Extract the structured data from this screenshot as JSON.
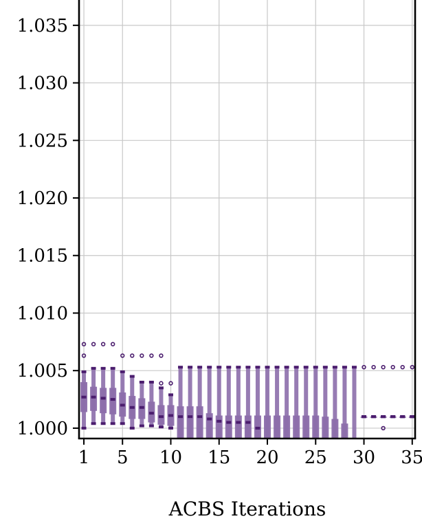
{
  "chart_data": {
    "type": "box",
    "title": "",
    "xlabel": "ACBS Iterations",
    "ylabel": "",
    "xlim": [
      0.5,
      35.3
    ],
    "ylim": [
      0.9991,
      1.0372
    ],
    "xticks": [
      1,
      5,
      10,
      15,
      20,
      25,
      30,
      35
    ],
    "xtick_labels": [
      "1",
      "5",
      "10",
      "15",
      "20",
      "25",
      "30",
      "35"
    ],
    "yticks": [
      1.0,
      1.005,
      1.01,
      1.015,
      1.02,
      1.025,
      1.03,
      1.035
    ],
    "ytick_labels": [
      "1.000",
      "1.005",
      "1.010",
      "1.015",
      "1.020",
      "1.025",
      "1.030",
      "1.035"
    ],
    "grid": true,
    "color": "#4b1d6e",
    "box_color": "#8c6eab",
    "boxes": [
      {
        "x": 1,
        "q1": 1.0014,
        "median": 1.0027,
        "q3": 1.004,
        "wl": 1.0,
        "wh": 1.0049,
        "fliers": [
          1.0063,
          1.0073
        ]
      },
      {
        "x": 2,
        "q1": 1.0015,
        "median": 1.0027,
        "q3": 1.0036,
        "wl": 1.0004,
        "wh": 1.0052,
        "fliers": [
          1.0073
        ]
      },
      {
        "x": 3,
        "q1": 1.0013,
        "median": 1.0026,
        "q3": 1.0035,
        "wl": 1.0004,
        "wh": 1.0052,
        "fliers": [
          1.0073
        ]
      },
      {
        "x": 4,
        "q1": 1.0012,
        "median": 1.0025,
        "q3": 1.0035,
        "wl": 1.0004,
        "wh": 1.0052,
        "fliers": [
          1.0073
        ]
      },
      {
        "x": 5,
        "q1": 1.001,
        "median": 1.002,
        "q3": 1.0031,
        "wl": 1.0004,
        "wh": 1.0049,
        "fliers": [
          1.0063
        ]
      },
      {
        "x": 6,
        "q1": 1.0008,
        "median": 1.0018,
        "q3": 1.0028,
        "wl": 1.0,
        "wh": 1.0045,
        "fliers": [
          1.0063
        ]
      },
      {
        "x": 7,
        "q1": 1.0008,
        "median": 1.0018,
        "q3": 1.0026,
        "wl": 1.0002,
        "wh": 1.004,
        "fliers": [
          1.0063
        ]
      },
      {
        "x": 8,
        "q1": 1.0005,
        "median": 1.0013,
        "q3": 1.0023,
        "wl": 1.0002,
        "wh": 1.004,
        "fliers": [
          1.0063
        ]
      },
      {
        "x": 9,
        "q1": 1.0003,
        "median": 1.001,
        "q3": 1.002,
        "wl": 1.0001,
        "wh": 1.0035,
        "fliers": [
          1.0039,
          1.0063
        ]
      },
      {
        "x": 10,
        "q1": 1.0002,
        "median": 1.0011,
        "q3": 1.002,
        "wl": 1.0,
        "wh": 1.0029,
        "fliers": [
          1.0039
        ]
      },
      {
        "x": 11,
        "q1": 0.999,
        "median": 1.001,
        "q3": 1.0019,
        "wl": 0.999,
        "wh": 1.0053,
        "fliers": []
      },
      {
        "x": 12,
        "q1": 0.999,
        "median": 1.001,
        "q3": 1.0019,
        "wl": 0.999,
        "wh": 1.0053,
        "fliers": []
      },
      {
        "x": 13,
        "q1": 0.999,
        "median": 1.001,
        "q3": 1.0019,
        "wl": 0.999,
        "wh": 1.0053,
        "fliers": []
      },
      {
        "x": 14,
        "q1": 0.999,
        "median": 1.0008,
        "q3": 1.0013,
        "wl": 0.999,
        "wh": 1.0053,
        "fliers": []
      },
      {
        "x": 15,
        "q1": 0.999,
        "median": 1.0006,
        "q3": 1.0011,
        "wl": 0.999,
        "wh": 1.0053,
        "fliers": []
      },
      {
        "x": 16,
        "q1": 0.999,
        "median": 1.0005,
        "q3": 1.0011,
        "wl": 0.999,
        "wh": 1.0053,
        "fliers": []
      },
      {
        "x": 17,
        "q1": 0.999,
        "median": 1.0005,
        "q3": 1.0011,
        "wl": 0.999,
        "wh": 1.0053,
        "fliers": []
      },
      {
        "x": 18,
        "q1": 0.999,
        "median": 1.0005,
        "q3": 1.0011,
        "wl": 0.999,
        "wh": 1.0053,
        "fliers": []
      },
      {
        "x": 19,
        "q1": 0.999,
        "median": 1.0,
        "q3": 1.0011,
        "wl": 0.999,
        "wh": 1.0053,
        "fliers": []
      },
      {
        "x": 20,
        "q1": 0.999,
        "median": 0.999,
        "q3": 1.0011,
        "wl": 0.999,
        "wh": 1.0053,
        "fliers": []
      },
      {
        "x": 21,
        "q1": 0.999,
        "median": 0.999,
        "q3": 1.0011,
        "wl": 0.999,
        "wh": 1.0053,
        "fliers": []
      },
      {
        "x": 22,
        "q1": 0.999,
        "median": 0.999,
        "q3": 1.0011,
        "wl": 0.999,
        "wh": 1.0053,
        "fliers": []
      },
      {
        "x": 23,
        "q1": 0.999,
        "median": 0.999,
        "q3": 1.0011,
        "wl": 0.999,
        "wh": 1.0053,
        "fliers": []
      },
      {
        "x": 24,
        "q1": 0.999,
        "median": 0.999,
        "q3": 1.0011,
        "wl": 0.999,
        "wh": 1.0053,
        "fliers": []
      },
      {
        "x": 25,
        "q1": 0.999,
        "median": 0.999,
        "q3": 1.0011,
        "wl": 0.999,
        "wh": 1.0053,
        "fliers": []
      },
      {
        "x": 26,
        "q1": 0.999,
        "median": 0.999,
        "q3": 1.001,
        "wl": 0.999,
        "wh": 1.0053,
        "fliers": []
      },
      {
        "x": 27,
        "q1": 0.999,
        "median": 0.999,
        "q3": 1.0008,
        "wl": 0.999,
        "wh": 1.0053,
        "fliers": []
      },
      {
        "x": 28,
        "q1": 0.999,
        "median": 0.999,
        "q3": 1.0004,
        "wl": 0.999,
        "wh": 1.0053,
        "fliers": []
      },
      {
        "x": 29,
        "q1": 0.999,
        "median": 0.999,
        "q3": 0.999,
        "wl": 0.999,
        "wh": 1.0053,
        "fliers": []
      },
      {
        "x": 30,
        "q1": 1.001,
        "median": 1.001,
        "q3": 1.001,
        "wl": 1.001,
        "wh": 1.001,
        "fliers": [
          1.0053
        ]
      },
      {
        "x": 31,
        "q1": 1.001,
        "median": 1.001,
        "q3": 1.001,
        "wl": 1.001,
        "wh": 1.001,
        "fliers": [
          1.0053
        ]
      },
      {
        "x": 32,
        "q1": 1.001,
        "median": 1.001,
        "q3": 1.001,
        "wl": 1.001,
        "wh": 1.001,
        "fliers": [
          1.0053,
          1.0
        ]
      },
      {
        "x": 33,
        "q1": 1.001,
        "median": 1.001,
        "q3": 1.001,
        "wl": 1.001,
        "wh": 1.001,
        "fliers": [
          1.0053
        ]
      },
      {
        "x": 34,
        "q1": 1.001,
        "median": 1.001,
        "q3": 1.001,
        "wl": 1.001,
        "wh": 1.001,
        "fliers": [
          1.0053
        ]
      },
      {
        "x": 35,
        "q1": 1.001,
        "median": 1.001,
        "q3": 1.001,
        "wl": 1.001,
        "wh": 1.001,
        "fliers": [
          1.0053
        ]
      }
    ]
  }
}
